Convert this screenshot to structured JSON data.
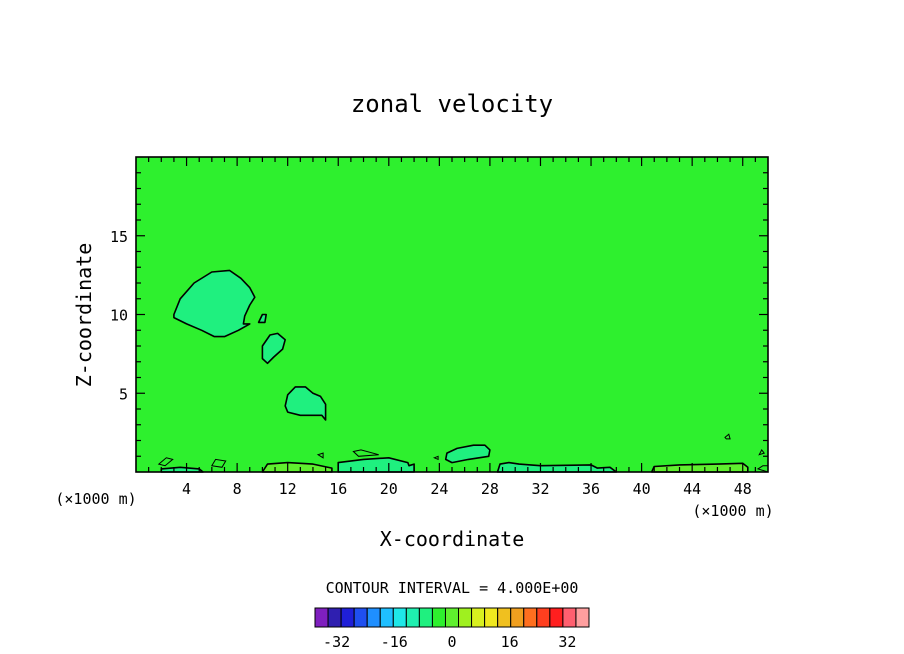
{
  "chart_data": {
    "type": "heatmap",
    "title": "zonal velocity",
    "xlabel": "X-coordinate",
    "ylabel": "Z-coordinate",
    "x_unit_left": "(×1000 m)",
    "x_unit_right": "(×1000 m)",
    "xlim": [
      0,
      50
    ],
    "ylim": [
      0,
      20
    ],
    "x_ticks": [
      4,
      8,
      12,
      16,
      20,
      24,
      28,
      32,
      36,
      40,
      44,
      48
    ],
    "y_ticks": [
      5,
      10,
      15
    ],
    "contour_interval_label": "CONTOUR INTERVAL = 4.000E+00",
    "contour_interval": 4.0,
    "background_value_range": [
      0,
      4
    ],
    "background_color": "#2ef02e",
    "colorbar": {
      "min": -36,
      "max": 36,
      "step": 4,
      "tick_values": [
        -32,
        -16,
        0,
        16,
        32
      ],
      "tick_labels": [
        "-32",
        "-16",
        "0",
        "16",
        "32"
      ],
      "colors": [
        "#7f1fbf",
        "#2f1fb0",
        "#1f1fd8",
        "#1f4ff0",
        "#1f8fff",
        "#1fbfff",
        "#1fe8e8",
        "#1ff0b0",
        "#1ff07f",
        "#2ef02e",
        "#5ff02e",
        "#9ff01f",
        "#d8f01f",
        "#f0e81f",
        "#f0c01f",
        "#f09f1f",
        "#ff6f1f",
        "#ff3f1f",
        "#ff1f1f",
        "#ff5f6f",
        "#ff9f9f"
      ]
    },
    "regions": [
      {
        "name": "upper-left-cell",
        "value_range": [
          -4,
          0
        ],
        "color": "#1ff07f",
        "points": [
          [
            3,
            10
          ],
          [
            3.5,
            11
          ],
          [
            4.6,
            12
          ],
          [
            6,
            12.7
          ],
          [
            7.4,
            12.8
          ],
          [
            8.3,
            12.3
          ],
          [
            9,
            11.7
          ],
          [
            9.4,
            11.1
          ],
          [
            9,
            10.6
          ],
          [
            8.6,
            9.9
          ],
          [
            8.5,
            9.4
          ],
          [
            9,
            9.4
          ],
          [
            8.1,
            9
          ],
          [
            7,
            8.6
          ],
          [
            6.2,
            8.6
          ],
          [
            5.2,
            9
          ],
          [
            4,
            9.4
          ],
          [
            3,
            9.8
          ]
        ]
      },
      {
        "name": "small-cell-a",
        "value_range": [
          -4,
          0
        ],
        "color": "#1ff07f",
        "points": [
          [
            9.7,
            9.5
          ],
          [
            10,
            10
          ],
          [
            10.3,
            10
          ],
          [
            10.2,
            9.5
          ]
        ]
      },
      {
        "name": "mid-cell",
        "value_range": [
          -4,
          0
        ],
        "color": "#1ff07f",
        "points": [
          [
            10,
            7.2
          ],
          [
            10,
            8
          ],
          [
            10.6,
            8.7
          ],
          [
            11.2,
            8.8
          ],
          [
            11.8,
            8.4
          ],
          [
            11.6,
            7.8
          ],
          [
            10.9,
            7.3
          ],
          [
            10.4,
            6.9
          ]
        ]
      },
      {
        "name": "lower-cell",
        "value_range": [
          -4,
          0
        ],
        "color": "#1ff07f",
        "points": [
          [
            11.8,
            4.2
          ],
          [
            12,
            4.9
          ],
          [
            12.6,
            5.4
          ],
          [
            13.4,
            5.4
          ],
          [
            14,
            5
          ],
          [
            14.6,
            4.8
          ],
          [
            15,
            4.3
          ],
          [
            15,
            3.3
          ],
          [
            14.7,
            3.6
          ],
          [
            13,
            3.6
          ],
          [
            12,
            3.8
          ]
        ]
      },
      {
        "name": "surface-cell-26",
        "value_range": [
          -4,
          0
        ],
        "color": "#1ff07f",
        "points": [
          [
            24.5,
            0.8
          ],
          [
            24.6,
            1.2
          ],
          [
            25.4,
            1.5
          ],
          [
            26.7,
            1.7
          ],
          [
            27.6,
            1.7
          ],
          [
            28,
            1.4
          ],
          [
            27.9,
            1
          ],
          [
            26.3,
            0.8
          ],
          [
            25,
            0.6
          ]
        ]
      },
      {
        "name": "surface-band-18",
        "value_range": [
          -4,
          0
        ],
        "color": "#1ff07f",
        "points": [
          [
            16,
            0
          ],
          [
            16,
            0.6
          ],
          [
            18,
            0.8
          ],
          [
            20,
            0.9
          ],
          [
            21.5,
            0.6
          ],
          [
            21.6,
            0.4
          ],
          [
            22,
            0.5
          ],
          [
            22,
            0
          ]
        ]
      },
      {
        "name": "surface-band-33",
        "value_range": [
          -4,
          0
        ],
        "color": "#1ff07f",
        "points": [
          [
            28.6,
            0
          ],
          [
            28.8,
            0.5
          ],
          [
            29.5,
            0.6
          ],
          [
            30.3,
            0.5
          ],
          [
            32,
            0.4
          ],
          [
            36,
            0.45
          ],
          [
            36.5,
            0.25
          ],
          [
            37.5,
            0.3
          ],
          [
            38,
            0
          ]
        ]
      },
      {
        "name": "surface-band-5",
        "value_range": [
          -4,
          0
        ],
        "color": "#1ff07f",
        "points": [
          [
            2,
            0
          ],
          [
            2,
            0.2
          ],
          [
            3.5,
            0.3
          ],
          [
            5,
            0.2
          ],
          [
            5.3,
            0
          ]
        ]
      },
      {
        "name": "surface-positive-12",
        "value_range": [
          4,
          8
        ],
        "color": "#5ff02e",
        "points": [
          [
            10,
            0
          ],
          [
            10.4,
            0.5
          ],
          [
            12,
            0.6
          ],
          [
            14,
            0.5
          ],
          [
            15.5,
            0.25
          ],
          [
            15.5,
            0
          ]
        ]
      },
      {
        "name": "surface-positive-45",
        "value_range": [
          4,
          8
        ],
        "color": "#5ff02e",
        "points": [
          [
            40.8,
            0
          ],
          [
            41,
            0.35
          ],
          [
            43,
            0.45
          ],
          [
            46,
            0.5
          ],
          [
            48,
            0.55
          ],
          [
            48.4,
            0.3
          ],
          [
            48.4,
            0
          ]
        ]
      }
    ],
    "small_contours": [
      {
        "points": [
          [
            1.8,
            0.5
          ],
          [
            2.4,
            0.9
          ],
          [
            2.9,
            0.8
          ],
          [
            2.3,
            0.4
          ]
        ]
      },
      {
        "points": [
          [
            6,
            0.4
          ],
          [
            6.3,
            0.8
          ],
          [
            7.1,
            0.7
          ],
          [
            6.8,
            0.3
          ]
        ]
      },
      {
        "points": [
          [
            17.2,
            1.3
          ],
          [
            17.8,
            1.4
          ],
          [
            19.2,
            1.1
          ],
          [
            17.6,
            1
          ]
        ]
      },
      {
        "points": [
          [
            14.4,
            1.1
          ],
          [
            14.8,
            1.2
          ],
          [
            14.8,
            0.9
          ]
        ]
      },
      {
        "points": [
          [
            23.6,
            0.9
          ],
          [
            23.9,
            1
          ],
          [
            23.9,
            0.8
          ]
        ]
      },
      {
        "points": [
          [
            46.6,
            2.2
          ],
          [
            46.9,
            2.4
          ],
          [
            47,
            2.1
          ],
          [
            46.7,
            2.1
          ]
        ]
      },
      {
        "points": [
          [
            49.2,
            0.2
          ],
          [
            49.6,
            0.4
          ],
          [
            50,
            0.4
          ],
          [
            50,
            0
          ]
        ]
      },
      {
        "points": [
          [
            49.3,
            1.1
          ],
          [
            49.5,
            1.4
          ],
          [
            49.7,
            1.2
          ]
        ]
      }
    ]
  }
}
